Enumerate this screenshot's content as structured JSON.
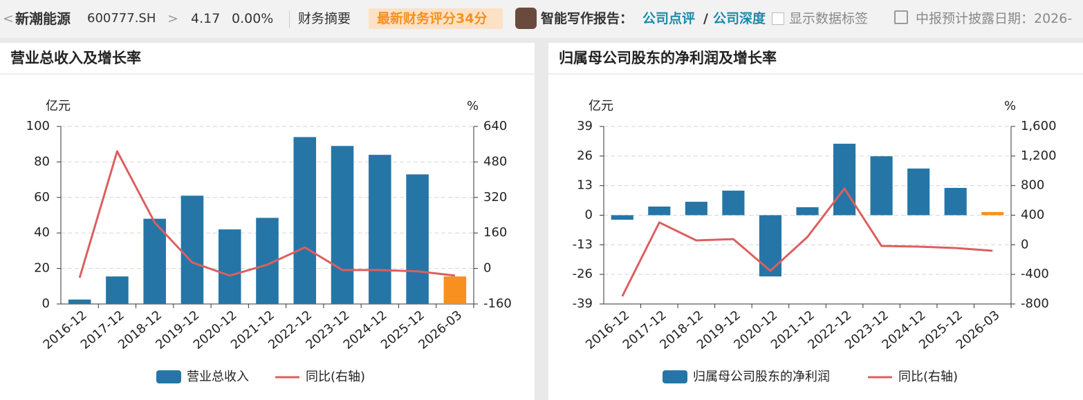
{
  "header": {
    "stock_name": "新潮能源",
    "stock_code": "600777.SH",
    "price": "4.17",
    "change": "0.00%",
    "tab": "财务摘要",
    "score_badge": "最新财务评分34分",
    "report_label": "智能写作报告：",
    "report_link_1": "公司点评",
    "separator": "/",
    "report_link_2": "公司深度",
    "checkbox_label": "显示数据标签",
    "disclosure_date": "中报预计披露日期：2026-"
  },
  "chart_data": [
    {
      "type": "bar",
      "title": "营业总收入及增长率",
      "y_unit": "亿元",
      "y2_unit": "%",
      "categories": [
        "2016-12",
        "2017-12",
        "2018-12",
        "2019-12",
        "2020-12",
        "2021-12",
        "2022-12",
        "2023-12",
        "2024-12",
        "2025-12",
        "2026-03"
      ],
      "series": [
        {
          "name": "营业总收入",
          "type": "bar",
          "color": "#2576a6",
          "colors": [
            "#2576a6",
            "#2576a6",
            "#2576a6",
            "#2576a6",
            "#2576a6",
            "#2576a6",
            "#2576a6",
            "#2576a6",
            "#2576a6",
            "#2576a6",
            "#f7901e"
          ],
          "values": [
            2.5,
            15.5,
            48,
            61,
            42,
            48.5,
            94,
            89,
            84,
            73,
            15.5
          ]
        },
        {
          "name": "同比(右轴)",
          "type": "line",
          "axis": "y2",
          "color": "#dc5f5f",
          "values": [
            -42,
            528,
            207,
            27,
            -32,
            17,
            95,
            -7,
            -7,
            -13,
            -32
          ]
        }
      ],
      "ylim": [
        0,
        100
      ],
      "yticks": [
        0,
        20,
        40,
        60,
        80,
        100
      ],
      "y2lim": [
        -160,
        640
      ],
      "y2ticks": [
        -160,
        0,
        160,
        320,
        480,
        640
      ],
      "grid": true
    },
    {
      "type": "bar",
      "title": "归属母公司股东的净利润及增长率",
      "y_unit": "亿元",
      "y2_unit": "%",
      "categories": [
        "2016-12",
        "2017-12",
        "2018-12",
        "2019-12",
        "2020-12",
        "2021-12",
        "2022-12",
        "2023-12",
        "2024-12",
        "2025-12",
        "2026-03"
      ],
      "series": [
        {
          "name": "归属母公司股东的净利润",
          "type": "bar",
          "color": "#2576a6",
          "colors": [
            "#2576a6",
            "#2576a6",
            "#2576a6",
            "#2576a6",
            "#2576a6",
            "#2576a6",
            "#2576a6",
            "#2576a6",
            "#2576a6",
            "#2576a6",
            "#f7901e"
          ],
          "values": [
            -2,
            3.8,
            5.9,
            10.8,
            -26.9,
            3.5,
            31.4,
            25.9,
            20.5,
            12,
            1.4
          ]
        },
        {
          "name": "同比(右轴)",
          "type": "line",
          "axis": "y2",
          "color": "#dc5f5f",
          "values": [
            -697,
            302,
            59,
            77,
            -352,
            106,
            760,
            -16,
            -25,
            -44,
            -81
          ]
        }
      ],
      "ylim": [
        -39,
        39
      ],
      "yticks": [
        -39,
        -26,
        -13,
        0,
        13,
        26,
        39
      ],
      "y2lim": [
        -800,
        1600
      ],
      "y2ticks": [
        -800,
        -400,
        0,
        400,
        800,
        {
          "value": 1200,
          "label": "1,200"
        },
        {
          "value": 1600,
          "label": "1,600"
        }
      ],
      "grid": true
    }
  ]
}
